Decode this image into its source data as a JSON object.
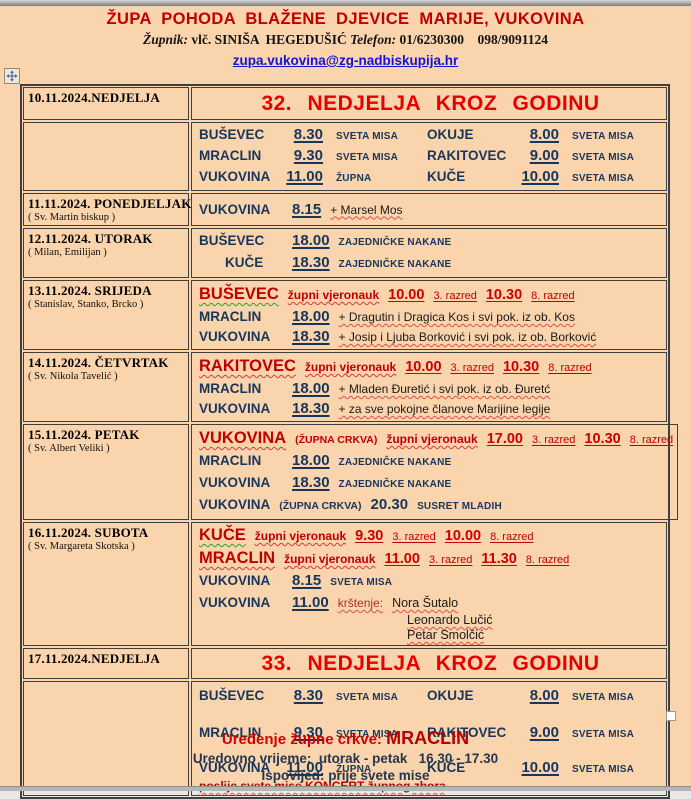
{
  "colors": {
    "background": "#FAD4AC",
    "dark_red": "#C00000",
    "bright_red": "#E60000",
    "navy": "#17365D",
    "link_blue": "#1414D4",
    "text_black": "#1A1A1A",
    "border": "#3F3F3F"
  },
  "icons": {
    "move_handle": "move-cross-arrows-icon",
    "resize_handle": "table-resize-square"
  },
  "header": {
    "title": "ŽUPA  POHODA  BLAŽENE  DJEVICE  MARIJE, VUKOVINA",
    "zupnik_label": "Župnik:",
    "zupnik_value": "vlč. SINIŠA  HEGEDUŠIĆ",
    "telefon_label": "Telefon:",
    "telefon_value": "01/6230300    098/9091124",
    "email": "zupa.vukovina@zg-nadbiskupija.hr"
  },
  "table": {
    "rows": [
      {
        "h": 33,
        "date": "10.11.2024.NEDJELJA",
        "saint": "",
        "banner": "32.  NEDJELJA  KROZ  GODINU"
      },
      {
        "h": 57,
        "date": "",
        "saint": "",
        "tight": true,
        "lines": [
          {
            "type": "mass2",
            "cells": [
              [
                "BUŠEVEC",
                "mloc"
              ],
              [
                "8.30",
                "mtime"
              ],
              [
                "SVETA MISA",
                "mcap"
              ],
              [
                "OKUJE",
                "mloc2"
              ],
              [
                "8.00",
                "mtime"
              ],
              [
                "SVETA MISA",
                "mcap"
              ]
            ]
          },
          {
            "type": "mass2",
            "cells": [
              [
                "MRACLIN",
                "mloc"
              ],
              [
                "9.30",
                "mtime"
              ],
              [
                "SVETA MISA",
                "mcap"
              ],
              [
                "RAKITOVEC",
                "mloc2"
              ],
              [
                "9.00",
                "mtime"
              ],
              [
                "SVETA MISA",
                "mcap"
              ]
            ]
          },
          {
            "type": "mass2",
            "cells": [
              [
                "VUKOVINA",
                "mloc"
              ],
              [
                "11.00",
                "mtime"
              ],
              [
                "ŽUPNA",
                "mcap"
              ],
              [
                "KUČE",
                "mloc2"
              ],
              [
                "10.00",
                "mtime"
              ],
              [
                "SVETA MISA",
                "mcap"
              ]
            ]
          }
        ]
      },
      {
        "h": 32,
        "date": "11.11.2024. PONEDJELJAK",
        "saint": "( Sv. Martin biskup )",
        "lines": [
          {
            "segments": [
              [
                "VUKOVINA",
                "loc"
              ],
              [
                "8.15",
                "time"
              ],
              [
                "+ Marsel Mos",
                "plus"
              ]
            ]
          }
        ]
      },
      {
        "h": 36,
        "date": "12.11.2024. UTORAK",
        "saint": "( Milan, Emilijan )",
        "lines": [
          {
            "segments": [
              [
                "BUŠEVEC",
                "loc"
              ],
              [
                "18.00",
                "time"
              ],
              [
                "ZAJEDNIČKE  NAKANE",
                "cap"
              ]
            ]
          },
          {
            "segments": [
              [
                "KUČE",
                "locpad"
              ],
              [
                "18.30",
                "time"
              ],
              [
                "ZAJEDNIČKE  NAKANE",
                "cap"
              ]
            ]
          }
        ]
      },
      {
        "h": 62,
        "date": "13.11.2024. SRIJEDA",
        "saint": "( Stanislav, Stanko, Brcko )",
        "lines": [
          {
            "lh": 22,
            "segments": [
              [
                "BUŠEVEC",
                "redlocg"
              ],
              [
                "župni  vjeronauk",
                "redsub"
              ],
              [
                "10.00",
                "redtime"
              ],
              [
                "3. razred",
                "razred"
              ],
              [
                "10.30",
                "redtime"
              ],
              [
                "8. razred",
                "razred"
              ]
            ]
          },
          {
            "segments": [
              [
                "MRACLIN",
                "loc"
              ],
              [
                "18.00",
                "time"
              ],
              [
                "+ Dragutin i Dragica Kos i svi pok. iz ob. Kos",
                "plus"
              ]
            ]
          },
          {
            "segments": [
              [
                "VUKOVINA",
                "loc"
              ],
              [
                "18.30",
                "time"
              ],
              [
                "+ Josip i Ljuba Borković i svi pok. iz ob. Borković",
                "plus"
              ]
            ]
          }
        ]
      },
      {
        "h": 63,
        "date": "14.11.2024. ČETVRTAK",
        "saint": "( Sv. Nikola Tavelić )",
        "lines": [
          {
            "lh": 22,
            "segments": [
              [
                "RAKITOVEC",
                "redloc"
              ],
              [
                "župni  vjeronauk",
                "redsub"
              ],
              [
                "10.00",
                "redtime"
              ],
              [
                "3. razred",
                "razred"
              ],
              [
                "10.30",
                "redtime"
              ],
              [
                "8. razred",
                "razred"
              ]
            ]
          },
          {
            "segments": [
              [
                "MRACLIN",
                "loc"
              ],
              [
                "18.00",
                "time"
              ],
              [
                "+ Mladen Đuretić i svi pok.  iz ob. Đuretć",
                "plus"
              ]
            ]
          },
          {
            "segments": [
              [
                "VUKOVINA",
                "loc"
              ],
              [
                "18.30",
                "time"
              ],
              [
                "+ za sve pokojne  članove Marijine legije",
                "plus"
              ]
            ]
          }
        ]
      },
      {
        "h": 78,
        "date": "15.11.2024. PETAK",
        "saint": "( Sv. Albert Veliki )",
        "lines": [
          {
            "lh": 22,
            "segments": [
              [
                "VUKOVINA",
                "redloc"
              ],
              [
                "(ŽUPNA CRKVA)",
                "redpar"
              ],
              [
                "župni  vjeronauk",
                "redsub"
              ],
              [
                "17.00",
                "redtime"
              ],
              [
                "3. razred",
                "razred"
              ],
              [
                "10.30",
                "redtime"
              ],
              [
                "8. razred",
                "razred"
              ]
            ]
          },
          {
            "segments": [
              [
                "MRACLIN",
                "loc"
              ],
              [
                "18.00",
                "time"
              ],
              [
                "ZAJEDNIČKE  NAKANE",
                "cap"
              ]
            ]
          },
          {
            "segments": [
              [
                "VUKOVINA",
                "loc"
              ],
              [
                "18.30",
                "time"
              ],
              [
                "ZAJEDNIČKE  NAKANE",
                "cap"
              ]
            ]
          },
          {
            "segments": [
              [
                "VUKOVINA",
                "locn"
              ],
              [
                "(ŽUPNA CRKVA)",
                "navpar"
              ],
              [
                "20.30",
                "timeplain"
              ],
              [
                "SUSRET MLADIH",
                "cap"
              ]
            ]
          }
        ]
      },
      {
        "h": 110,
        "date": "16.11.2024. SUBOTA",
        "saint": "( Sv. Margareta Skotska )",
        "lines": [
          {
            "lh": 21,
            "segments": [
              [
                "KUČE",
                "redlocg"
              ],
              [
                "župni  vjeronauk",
                "redsub"
              ],
              [
                "9.30",
                "redtime"
              ],
              [
                "3. razred",
                "razred"
              ],
              [
                "10.00",
                "redtime"
              ],
              [
                "8. razred",
                "razred"
              ]
            ]
          },
          {
            "lh": 21,
            "segments": [
              [
                "MRACLIN",
                "redloc"
              ],
              [
                "župni  vjeronauk",
                "redsub"
              ],
              [
                "11.00",
                "redtime"
              ],
              [
                "3. razred",
                "razred"
              ],
              [
                "11.30",
                "redtime"
              ],
              [
                "8. razred",
                "razred"
              ]
            ]
          },
          {
            "segments": [
              [
                "VUKOVINA",
                "loc"
              ],
              [
                "8.15",
                "time"
              ],
              [
                "SVETA  MISA",
                "cap"
              ]
            ]
          },
          {
            "segments": [
              [
                "VUKOVINA",
                "loc"
              ],
              [
                "11.00",
                "time"
              ],
              [
                "krštenje:",
                "krst"
              ],
              [
                "Nora Šutalo",
                "name"
              ]
            ]
          },
          {
            "lh": 15,
            "indent": 208,
            "segments": [
              [
                "Leonardo Lučić",
                "name"
              ]
            ]
          },
          {
            "lh": 15,
            "indent": 208,
            "segments": [
              [
                "Petar Smolčić",
                "name"
              ]
            ]
          }
        ]
      },
      {
        "h": 31,
        "date": "17.11.2024.NEDJELJA",
        "saint": "",
        "banner": "33.  NEDJELJA  KROZ  GODINU"
      },
      {
        "h": 100,
        "date": "",
        "saint": "",
        "tall": true,
        "lines": [
          {
            "type": "mass2",
            "mt": 2,
            "cells": [
              [
                "BUŠEVEC",
                "mloc"
              ],
              [
                "8.30",
                "mtime"
              ],
              [
                "SVETA MISA",
                "mcap"
              ],
              [
                "OKUJE",
                "mloc2"
              ],
              [
                "8.00",
                "mtime"
              ],
              [
                "SVETA MISA",
                "mcap"
              ]
            ]
          },
          {
            "type": "mass2",
            "mt": 16,
            "cells": [
              [
                "MRACLIN",
                "mloc"
              ],
              [
                "9.30",
                "mtime"
              ],
              [
                "SVETA MISA",
                "mcap"
              ],
              [
                "RAKITOVEC",
                "mloc2"
              ],
              [
                "9.00",
                "mtime"
              ],
              [
                "SVETA MISA",
                "mcap"
              ]
            ]
          },
          {
            "type": "mass2",
            "mt": 14,
            "cells": [
              [
                "VUKOVINA",
                "mloc"
              ],
              [
                "11.00",
                "mtime"
              ],
              [
                "ŽUPNA",
                "mcap"
              ],
              [
                "KUČE",
                "mloc2"
              ],
              [
                "10.00",
                "mtime"
              ],
              [
                "SVETA MISA",
                "mcap"
              ]
            ]
          },
          {
            "lh": 14,
            "segments": [
              [
                "poslije svete mise KONCERT župnog zbora",
                "concert"
              ]
            ]
          }
        ]
      }
    ]
  },
  "footer": {
    "line1_label": "Uređenje župne crkve: ",
    "line1_value": "MRACLIN",
    "line2": "Uredovno vrijeme:  utorak - petak   16.30 - 17.30",
    "line3": "Ispovijed: prije svete mise"
  }
}
